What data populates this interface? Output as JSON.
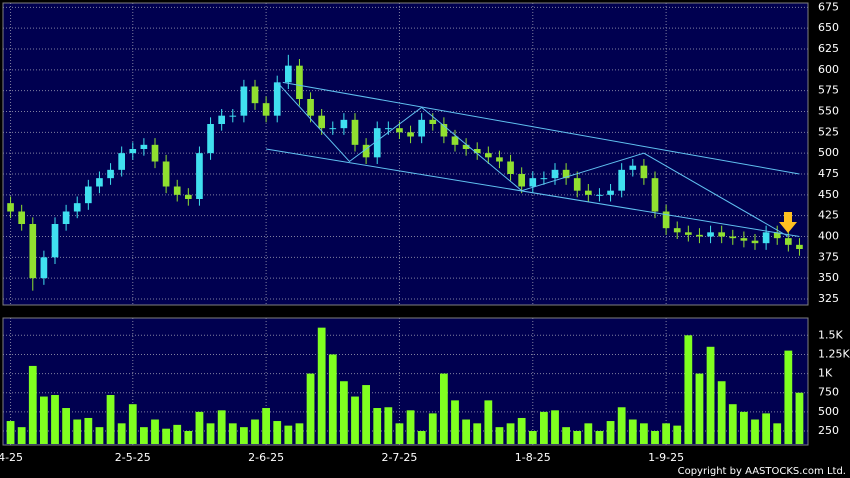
{
  "chart_data": {
    "type": "candlestick",
    "categories": [
      "4-25",
      null,
      null,
      null,
      null,
      null,
      null,
      null,
      null,
      null,
      null,
      "2-5-25",
      null,
      null,
      null,
      null,
      null,
      null,
      null,
      null,
      null,
      null,
      null,
      "2-6-25",
      null,
      null,
      null,
      null,
      null,
      null,
      null,
      null,
      null,
      null,
      null,
      "2-7-25",
      null,
      null,
      null,
      null,
      null,
      null,
      null,
      null,
      null,
      null,
      null,
      "1-8-25",
      null,
      null,
      null,
      null,
      null,
      null,
      null,
      null,
      null,
      null,
      null,
      "1-9-25",
      null,
      null,
      null,
      null,
      null,
      null,
      null,
      null,
      null,
      null,
      null,
      null
    ],
    "open": [
      440,
      430,
      415,
      350,
      375,
      415,
      430,
      440,
      460,
      470,
      480,
      500,
      505,
      510,
      490,
      460,
      450,
      445,
      500,
      535,
      545,
      545,
      580,
      560,
      545,
      585,
      605,
      565,
      545,
      530,
      530,
      540,
      510,
      495,
      530,
      530,
      525,
      520,
      540,
      535,
      520,
      510,
      505,
      500,
      495,
      490,
      475,
      460,
      470,
      470,
      480,
      470,
      455,
      450,
      450,
      455,
      480,
      485,
      470,
      430,
      410,
      405,
      402,
      400,
      405,
      400,
      398,
      395,
      392,
      405,
      398,
      390
    ],
    "high": [
      448,
      438,
      423,
      383,
      423,
      438,
      448,
      468,
      478,
      488,
      508,
      513,
      518,
      518,
      498,
      468,
      458,
      508,
      543,
      553,
      553,
      588,
      588,
      568,
      593,
      618,
      613,
      573,
      553,
      538,
      548,
      548,
      518,
      538,
      538,
      538,
      533,
      548,
      548,
      543,
      528,
      518,
      513,
      508,
      503,
      498,
      483,
      478,
      478,
      488,
      488,
      478,
      463,
      458,
      463,
      488,
      493,
      493,
      478,
      438,
      418,
      413,
      410,
      413,
      413,
      408,
      406,
      403,
      413,
      413,
      406,
      398
    ],
    "low": [
      422,
      407,
      335,
      342,
      367,
      407,
      422,
      432,
      452,
      462,
      472,
      492,
      497,
      482,
      452,
      442,
      437,
      437,
      492,
      527,
      537,
      537,
      552,
      537,
      537,
      577,
      557,
      537,
      522,
      522,
      522,
      502,
      487,
      487,
      522,
      517,
      512,
      512,
      527,
      512,
      502,
      497,
      492,
      487,
      482,
      467,
      452,
      452,
      462,
      462,
      462,
      447,
      442,
      442,
      442,
      447,
      472,
      462,
      422,
      402,
      397,
      394,
      392,
      392,
      392,
      390,
      387,
      384,
      384,
      390,
      382,
      377
    ],
    "close": [
      430,
      415,
      350,
      375,
      415,
      430,
      440,
      460,
      470,
      480,
      500,
      505,
      510,
      490,
      460,
      450,
      445,
      500,
      535,
      545,
      545,
      580,
      560,
      545,
      585,
      605,
      565,
      545,
      530,
      530,
      540,
      510,
      495,
      530,
      530,
      525,
      520,
      540,
      535,
      520,
      510,
      505,
      500,
      495,
      490,
      475,
      460,
      470,
      470,
      480,
      470,
      455,
      450,
      450,
      455,
      480,
      485,
      470,
      430,
      410,
      405,
      402,
      400,
      405,
      400,
      398,
      395,
      392,
      405,
      398,
      390,
      385
    ],
    "volume": [
      380,
      300,
      1100,
      700,
      720,
      550,
      400,
      420,
      300,
      720,
      350,
      600,
      300,
      400,
      280,
      330,
      250,
      500,
      350,
      520,
      350,
      300,
      400,
      550,
      380,
      320,
      350,
      1000,
      1600,
      1250,
      900,
      700,
      850,
      550,
      560,
      350,
      520,
      250,
      480,
      1000,
      650,
      400,
      350,
      650,
      300,
      350,
      420,
      250,
      500,
      520,
      300,
      250,
      350,
      250,
      380,
      560,
      400,
      350,
      250,
      350,
      320,
      1500,
      1000,
      1350,
      900,
      600,
      500,
      400,
      480,
      350,
      1300,
      750
    ],
    "up_color": "#40e0f0",
    "down_color": "#90e030",
    "volume_color": "#80ff20",
    "line_color": "#60c0f0",
    "ylim": [
      319,
      679
    ],
    "yticks": [
      325,
      350,
      375,
      400,
      425,
      450,
      475,
      500,
      525,
      550,
      575,
      600,
      625,
      650,
      675
    ],
    "y2lim": [
      80,
      1700
    ],
    "y2ticks": [
      250,
      500,
      {
        "value": 750,
        "label": "750"
      },
      {
        "value": 1000,
        "label": "1K"
      },
      {
        "value": 1250,
        "label": "1.25K"
      },
      {
        "value": 1500,
        "label": "1.5K"
      }
    ],
    "grid": true,
    "trendlines": [
      [
        [
          24.5,
          585
        ],
        [
          71,
          475
        ]
      ],
      [
        [
          23,
          505
        ],
        [
          71,
          400
        ]
      ],
      [
        [
          24,
          585
        ],
        [
          30.5,
          490
        ],
        [
          37,
          555
        ],
        [
          46,
          455
        ],
        [
          57,
          500
        ],
        [
          70,
          400
        ]
      ]
    ],
    "copyright": "Copyright by AASTOCKS.com Ltd."
  }
}
